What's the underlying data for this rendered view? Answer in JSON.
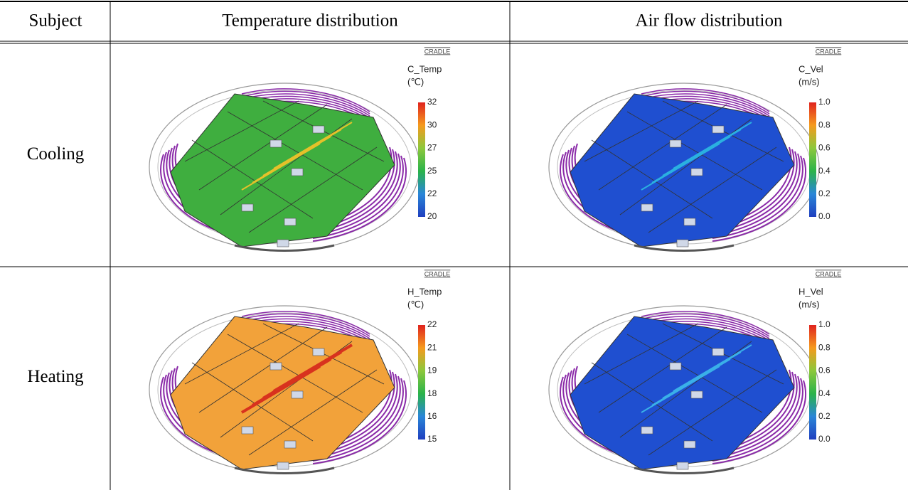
{
  "table": {
    "header": [
      "Subject",
      "Temperature distribution",
      "Air flow distribution"
    ],
    "rows": [
      [
        "Cooling",
        {
          "brand": "CRADLE",
          "label": "C_Temp",
          "unit": "(℃)",
          "ticks": [
            32,
            30,
            27,
            25,
            22,
            20
          ]
        },
        {
          "brand": "CRADLE",
          "label": "C_Vel",
          "unit": "(m/s)",
          "ticks": [
            "1.0",
            "0.8",
            "0.6",
            "0.4",
            "0.2",
            "0.0"
          ]
        }
      ],
      [
        "Heating",
        {
          "brand": "CRADLE",
          "label": "H_Temp",
          "unit": "(℃)",
          "ticks": [
            22,
            21,
            19,
            18,
            16,
            15
          ]
        },
        {
          "brand": "CRADLE",
          "label": "H_Vel",
          "unit": "(m/s)",
          "ticks": [
            "1.0",
            "0.8",
            "0.6",
            "0.4",
            "0.2",
            "0.0"
          ]
        }
      ]
    ]
  }
}
